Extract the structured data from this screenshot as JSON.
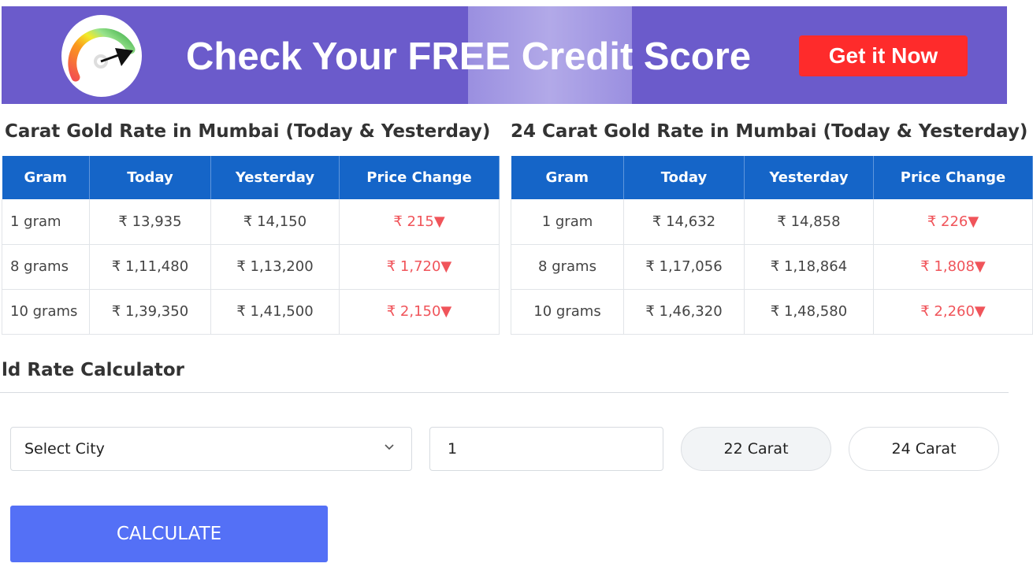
{
  "banner": {
    "title": "Check Your FREE Credit Score",
    "cta_label": "Get it Now",
    "icon": "credit-score-gauge-icon",
    "bg_color": "#6b5bcb",
    "cta_color": "#fe2b2b"
  },
  "table22": {
    "heading": "Carat Gold Rate in Mumbai (Today & Yesterday)",
    "columns": [
      "Gram",
      "Today",
      "Yesterday",
      "Price Change"
    ],
    "rows": [
      [
        "1 gram",
        "₹ 13,935",
        "₹ 14,150",
        "₹ 215▼"
      ],
      [
        "8 grams",
        "₹ 1,11,480",
        "₹ 1,13,200",
        "₹ 1,720▼"
      ],
      [
        "10 grams",
        "₹ 1,39,350",
        "₹ 1,41,500",
        "₹ 2,150▼"
      ]
    ]
  },
  "table24": {
    "heading": "24 Carat Gold Rate in Mumbai (Today & Yesterday)",
    "columns": [
      "Gram",
      "Today",
      "Yesterday",
      "Price Change"
    ],
    "rows": [
      [
        "1 gram",
        "₹ 14,632",
        "₹ 14,858",
        "₹ 226▼"
      ],
      [
        "8 grams",
        "₹ 1,17,056",
        "₹ 1,18,864",
        "₹ 1,808▼"
      ],
      [
        "10 grams",
        "₹ 1,46,320",
        "₹ 1,48,580",
        "₹ 2,260▼"
      ]
    ]
  },
  "calculator": {
    "heading": "ld Rate Calculator",
    "city_select": "Select City",
    "quantity": "1",
    "carat_options": [
      "22 Carat",
      "24 Carat"
    ],
    "selected_carat": "22 Carat",
    "calculate_label": "CALCULATE",
    "header_color": "#1565c8",
    "decrease_color": "#f0545a",
    "button_color": "#5470f6"
  }
}
